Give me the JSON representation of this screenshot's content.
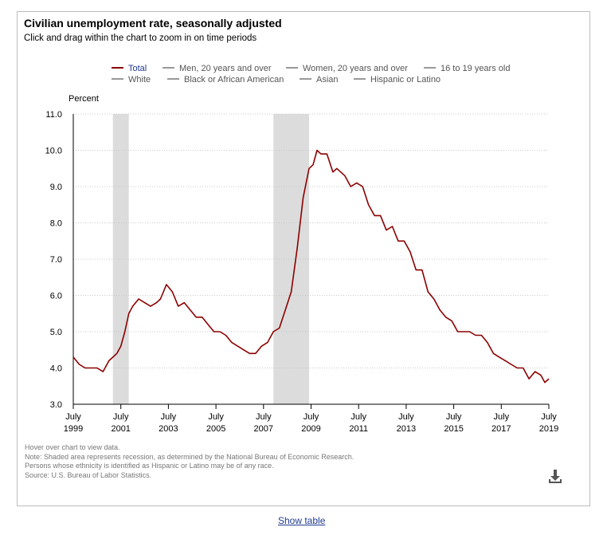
{
  "chart_data": {
    "type": "line",
    "title": "Civilian unemployment rate, seasonally adjusted",
    "subtitle": "Click and drag within the chart to zoom in on time periods",
    "ylabel": "Percent",
    "xlabel": "",
    "ylim": [
      3.0,
      11.0
    ],
    "y_ticks": [
      "3.0",
      "4.0",
      "5.0",
      "6.0",
      "7.0",
      "8.0",
      "9.0",
      "10.0",
      "11.0"
    ],
    "x_ticks": [
      {
        "month": "July",
        "year": "1999"
      },
      {
        "month": "July",
        "year": "2001"
      },
      {
        "month": "July",
        "year": "2003"
      },
      {
        "month": "July",
        "year": "2005"
      },
      {
        "month": "July",
        "year": "2007"
      },
      {
        "month": "July",
        "year": "2009"
      },
      {
        "month": "July",
        "year": "2011"
      },
      {
        "month": "July",
        "year": "2013"
      },
      {
        "month": "July",
        "year": "2015"
      },
      {
        "month": "July",
        "year": "2017"
      },
      {
        "month": "July",
        "year": "2019"
      }
    ],
    "x_range": [
      "1999-07",
      "2019-07"
    ],
    "grid": "horizontal dotted",
    "recessions": [
      {
        "start": "2001-03",
        "end": "2001-11"
      },
      {
        "start": "2007-12",
        "end": "2009-06"
      }
    ],
    "series": [
      {
        "name": "Total",
        "color": "#8b0000",
        "x": [
          "1999-07",
          "1999-10",
          "2000-01",
          "2000-04",
          "2000-07",
          "2000-10",
          "2001-01",
          "2001-03",
          "2001-05",
          "2001-07",
          "2001-09",
          "2001-11",
          "2002-01",
          "2002-04",
          "2002-07",
          "2002-10",
          "2003-01",
          "2003-03",
          "2003-06",
          "2003-09",
          "2003-12",
          "2004-03",
          "2004-06",
          "2004-09",
          "2004-12",
          "2005-03",
          "2005-06",
          "2005-09",
          "2005-12",
          "2006-03",
          "2006-06",
          "2006-09",
          "2006-12",
          "2007-03",
          "2007-06",
          "2007-09",
          "2007-12",
          "2008-03",
          "2008-06",
          "2008-09",
          "2008-12",
          "2009-03",
          "2009-06",
          "2009-08",
          "2009-10",
          "2009-12",
          "2010-03",
          "2010-06",
          "2010-08",
          "2010-10",
          "2010-12",
          "2011-03",
          "2011-06",
          "2011-09",
          "2011-12",
          "2012-03",
          "2012-06",
          "2012-09",
          "2012-12",
          "2013-03",
          "2013-06",
          "2013-09",
          "2013-12",
          "2014-03",
          "2014-06",
          "2014-09",
          "2014-12",
          "2015-03",
          "2015-06",
          "2015-09",
          "2015-12",
          "2016-03",
          "2016-06",
          "2016-09",
          "2016-12",
          "2017-03",
          "2017-06",
          "2017-09",
          "2017-12",
          "2018-03",
          "2018-06",
          "2018-09",
          "2018-12",
          "2019-03",
          "2019-05",
          "2019-07"
        ],
        "values": [
          4.3,
          4.1,
          4.0,
          4.0,
          4.0,
          3.9,
          4.2,
          4.3,
          4.4,
          4.6,
          5.0,
          5.5,
          5.7,
          5.9,
          5.8,
          5.7,
          5.8,
          5.9,
          6.3,
          6.1,
          5.7,
          5.8,
          5.6,
          5.4,
          5.4,
          5.2,
          5.0,
          5.0,
          4.9,
          4.7,
          4.6,
          4.5,
          4.4,
          4.4,
          4.6,
          4.7,
          5.0,
          5.1,
          5.6,
          6.1,
          7.3,
          8.7,
          9.5,
          9.6,
          10.0,
          9.9,
          9.9,
          9.4,
          9.5,
          9.4,
          9.3,
          9.0,
          9.1,
          9.0,
          8.5,
          8.2,
          8.2,
          7.8,
          7.9,
          7.5,
          7.5,
          7.2,
          6.7,
          6.7,
          6.1,
          5.9,
          5.6,
          5.4,
          5.3,
          5.0,
          5.0,
          5.0,
          4.9,
          4.9,
          4.7,
          4.4,
          4.3,
          4.2,
          4.1,
          4.0,
          4.0,
          3.7,
          3.9,
          3.8,
          3.6,
          3.7
        ]
      }
    ]
  },
  "legend": {
    "row1": [
      "Total",
      "Men, 20 years and over",
      "Women, 20 years and over",
      "16 to 19 years old"
    ],
    "row2": [
      "White",
      "Black or African American",
      "Asian",
      "Hispanic or Latino"
    ],
    "active": "Total"
  },
  "notes": [
    "Hover over chart to view data.",
    "Note: Shaded area represents recession, as determined by the National Bureau of Economic Research.",
    "Persons whose ethnicity is identified as Hispanic or Latino may be of any race.",
    "Source: U.S. Bureau of Labor Statistics."
  ],
  "download_icon": "download-icon",
  "show_table_label": "Show table",
  "colors": {
    "series": "#8b0000",
    "recession": "#dcdcdc",
    "legend_active": "#1f3a93",
    "link": "#1f3a93"
  }
}
